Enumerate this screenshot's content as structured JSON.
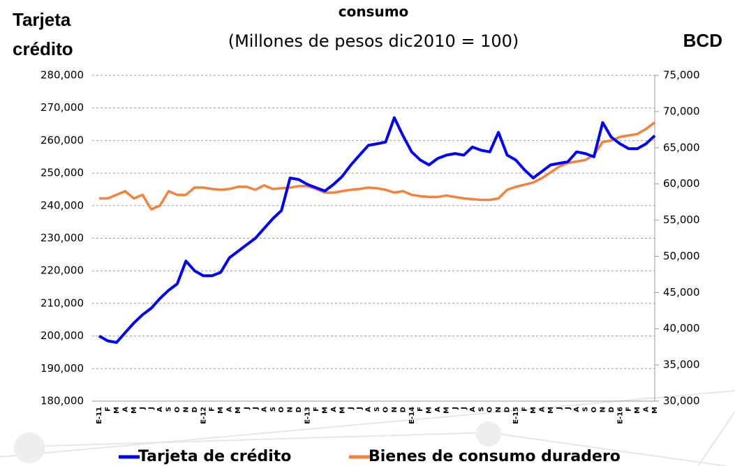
{
  "chart_data": {
    "type": "line",
    "title": "consumo",
    "subtitle": "(Millones de pesos dic2010 = 100)",
    "ylabel": [
      "Tarjeta",
      "crédito"
    ],
    "y2label": "BCD",
    "categories": [
      "E-11",
      "F",
      "M",
      "A",
      "M",
      "J",
      "J",
      "A",
      "S",
      "O",
      "N",
      "D",
      "E-12",
      "F",
      "M",
      "A",
      "M",
      "J",
      "J",
      "A",
      "S",
      "O",
      "N",
      "D",
      "E-13",
      "F",
      "M",
      "A",
      "M",
      "J",
      "J",
      "A",
      "S",
      "O",
      "N",
      "D",
      "E-14",
      "F",
      "M",
      "A",
      "M",
      "J",
      "J",
      "A",
      "S",
      "O",
      "N",
      "D",
      "E-15",
      "F",
      "M",
      "A",
      "M",
      "J",
      "J",
      "A",
      "S",
      "O",
      "N",
      "D",
      "E-16",
      "F",
      "M",
      "A",
      "M"
    ],
    "series": [
      {
        "name": "Tarjeta de crédito",
        "color": "#0000ff",
        "axis": "y",
        "values": [
          200000,
          198500,
          198000,
          201000,
          204000,
          206500,
          208500,
          211500,
          214000,
          216000,
          223000,
          220000,
          218500,
          218500,
          219500,
          224000,
          226000,
          228000,
          230000,
          233000,
          236000,
          238500,
          248500,
          248000,
          246500,
          245500,
          244500,
          246500,
          249000,
          252500,
          255500,
          258500,
          259000,
          259500,
          267000,
          261500,
          256500,
          254000,
          252500,
          254500,
          255500,
          256000,
          255500,
          258000,
          257000,
          256500,
          262500,
          255500,
          254000,
          251000,
          248500,
          250500,
          252500,
          253000,
          253500,
          256500,
          256000,
          255000,
          265500,
          261000,
          259000,
          257500,
          257500,
          259000,
          261500
        ]
      },
      {
        "name": "Bienes de consumo duradero",
        "color": "#f5823c",
        "axis": "y2",
        "values": [
          58000,
          58000,
          58500,
          59000,
          58000,
          58500,
          56500,
          57000,
          59000,
          58500,
          58500,
          59500,
          59500,
          59300,
          59200,
          59300,
          59600,
          59600,
          59200,
          59800,
          59300,
          59400,
          59500,
          59700,
          59700,
          59300,
          58800,
          58800,
          59000,
          59200,
          59300,
          59500,
          59400,
          59200,
          58800,
          59000,
          58500,
          58300,
          58200,
          58200,
          58400,
          58200,
          58000,
          57900,
          57800,
          57800,
          58000,
          59200,
          59600,
          59900,
          60200,
          60800,
          61600,
          62400,
          62900,
          63100,
          63300,
          64000,
          65800,
          66000,
          66500,
          66700,
          66900,
          67600,
          68500
        ]
      }
    ],
    "ylim": [
      180000,
      280000
    ],
    "yticks": [
      {
        "value": 180000,
        "label": "180,000"
      },
      {
        "value": 190000,
        "label": "190,000"
      },
      {
        "value": 200000,
        "label": "200,000"
      },
      {
        "value": 210000,
        "label": "210,000"
      },
      {
        "value": 220000,
        "label": "220,000"
      },
      {
        "value": 230000,
        "label": "230,000"
      },
      {
        "value": 240000,
        "label": "240,000"
      },
      {
        "value": 250000,
        "label": "250,000"
      },
      {
        "value": 260000,
        "label": "260,000"
      },
      {
        "value": 270000,
        "label": "270,000"
      },
      {
        "value": 280000,
        "label": "280,000"
      }
    ],
    "y2lim": [
      30000,
      75000
    ],
    "y2ticks": [
      {
        "value": 30000,
        "label": "30,000"
      },
      {
        "value": 35000,
        "label": "35,000"
      },
      {
        "value": 40000,
        "label": "40,000"
      },
      {
        "value": 45000,
        "label": "45,000"
      },
      {
        "value": 50000,
        "label": "50,000"
      },
      {
        "value": 55000,
        "label": "55,000"
      },
      {
        "value": 60000,
        "label": "60,000"
      },
      {
        "value": 65000,
        "label": "65,000"
      },
      {
        "value": 70000,
        "label": "70,000"
      },
      {
        "value": 75000,
        "label": "75,000"
      }
    ],
    "grid": true,
    "legend": "bottom"
  }
}
